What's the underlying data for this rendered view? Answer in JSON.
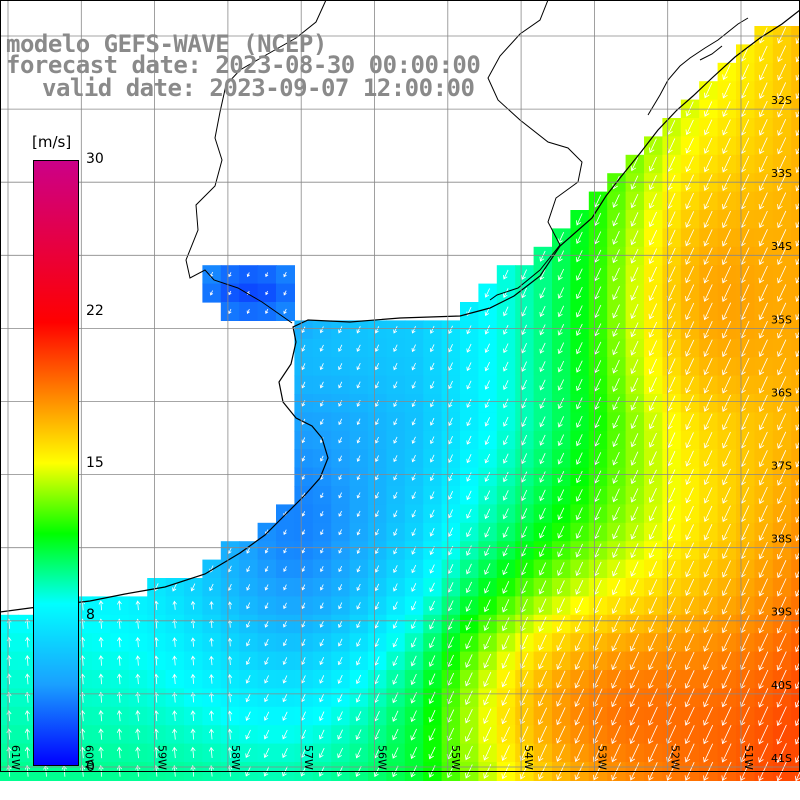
{
  "title": {
    "line1": "modelo GEFS-WAVE (NCEP)",
    "line2": "forecast date: 2023-08-30 00:00:00",
    "line3": "valid date: 2023-09-07 12:00:00"
  },
  "legend": {
    "unit": "[m/s]",
    "ticks": [
      "30",
      "22",
      "15",
      "8",
      "0"
    ],
    "stops": [
      {
        "value": 0,
        "color": "#0000ff"
      },
      {
        "value": 4,
        "color": "#1aa0ff"
      },
      {
        "value": 8,
        "color": "#00ffff"
      },
      {
        "value": 11.5,
        "color": "#00ff00"
      },
      {
        "value": 15,
        "color": "#ffff00"
      },
      {
        "value": 18.5,
        "color": "#ff8000"
      },
      {
        "value": 22,
        "color": "#ff0000"
      },
      {
        "value": 30,
        "color": "#cc0088"
      }
    ]
  },
  "map": {
    "lat_labels": [
      "32S",
      "33S",
      "34S",
      "35S",
      "36S",
      "37S",
      "38S",
      "39S",
      "40S",
      "41S"
    ],
    "lon_labels": [
      "61W",
      "60W",
      "59W",
      "58W",
      "57W",
      "56W",
      "55W",
      "54W",
      "53W",
      "52W",
      "51W"
    ],
    "land_color": "#ffffff",
    "coast_color": "#000000",
    "grid_color": "#888888",
    "arrow_color": "#ffffff",
    "wind_direction": "toward SSW"
  }
}
